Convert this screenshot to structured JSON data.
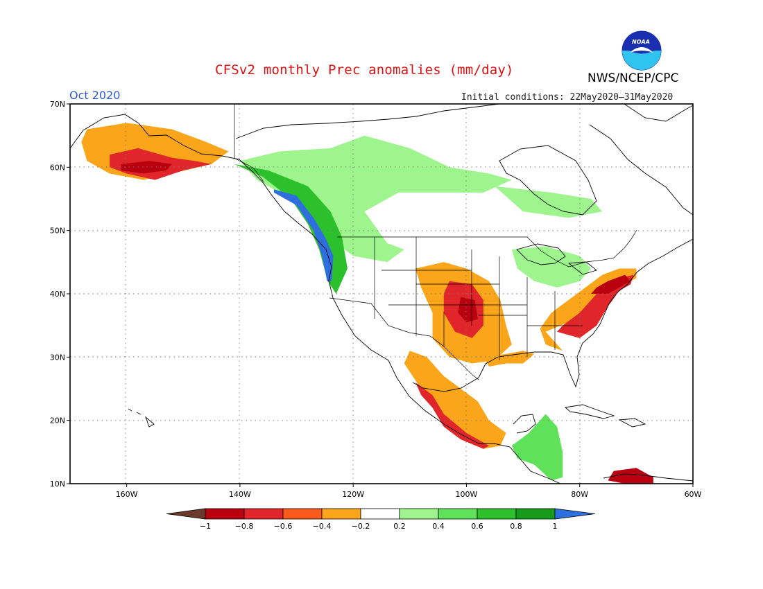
{
  "title": "CFSv2 monthly Prec anomalies (mm/day)",
  "agency": "NWS/NCEP/CPC",
  "logo_text": "NOAA",
  "period": "Oct 2020",
  "init_conditions": "Initial conditions: 22May2020–31May2020",
  "map": {
    "lon_range": [
      -170,
      -60
    ],
    "lat_range": [
      10,
      70
    ],
    "lat_ticks": [
      {
        "value": 70,
        "label": "70N"
      },
      {
        "value": 60,
        "label": "60N"
      },
      {
        "value": 50,
        "label": "50N"
      },
      {
        "value": 40,
        "label": "40N"
      },
      {
        "value": 30,
        "label": "30N"
      },
      {
        "value": 20,
        "label": "20N"
      },
      {
        "value": 10,
        "label": "10N"
      }
    ],
    "lon_ticks": [
      {
        "value": -160,
        "label": "160W"
      },
      {
        "value": -140,
        "label": "140W"
      },
      {
        "value": -120,
        "label": "120W"
      },
      {
        "value": -100,
        "label": "100W"
      },
      {
        "value": -80,
        "label": "80W"
      },
      {
        "value": -60,
        "label": "60W"
      }
    ],
    "grid": "dotted"
  },
  "colorbar": {
    "labels": [
      "−1",
      "−0.8",
      "−0.6",
      "−0.4",
      "−0.2",
      "0.2",
      "0.4",
      "0.6",
      "0.8",
      "1"
    ],
    "colors": [
      "#6b3a2a",
      "#b8000f",
      "#e0262a",
      "#fa5a1c",
      "#fba51a",
      "#ffffff",
      "#9ef58d",
      "#5fe15a",
      "#2cc12c",
      "#179b1a",
      "#2e6fe0"
    ]
  },
  "anomaly_regions": [
    {
      "name": "alaska",
      "level": -0.4,
      "color": "#fba51a",
      "lonlat": [
        [
          -167,
          66
        ],
        [
          -160,
          67
        ],
        [
          -152,
          66
        ],
        [
          -146,
          64
        ],
        [
          -142,
          62.5
        ],
        [
          -145,
          60.5
        ],
        [
          -152,
          59
        ],
        [
          -157,
          58
        ],
        [
          -163,
          59
        ],
        [
          -167,
          61
        ],
        [
          -168,
          64
        ]
      ]
    },
    {
      "name": "alaska-south",
      "level": -0.7,
      "color": "#e0262a",
      "lonlat": [
        [
          -163,
          62
        ],
        [
          -158,
          63
        ],
        [
          -152,
          61.5
        ],
        [
          -148,
          61
        ],
        [
          -145,
          60.5
        ],
        [
          -150,
          59.5
        ],
        [
          -155,
          58
        ],
        [
          -160,
          59
        ],
        [
          -163,
          60
        ]
      ]
    },
    {
      "name": "alaska-core",
      "level": -0.9,
      "color": "#b8000f",
      "lonlat": [
        [
          -161,
          60.5
        ],
        [
          -156,
          61
        ],
        [
          -152,
          60.5
        ],
        [
          -153,
          59.5
        ],
        [
          -157,
          59
        ],
        [
          -161,
          59.5
        ]
      ]
    },
    {
      "name": "yukon-bc",
      "level": 0.3,
      "color": "#9ef58d",
      "lonlat": [
        [
          -140,
          61
        ],
        [
          -133,
          62.5
        ],
        [
          -124,
          63
        ],
        [
          -118,
          65
        ],
        [
          -110,
          63
        ],
        [
          -103,
          60
        ],
        [
          -96,
          59
        ],
        [
          -92,
          58
        ],
        [
          -97,
          56
        ],
        [
          -112,
          56
        ],
        [
          -118,
          53
        ],
        [
          -114,
          48
        ],
        [
          -111,
          47
        ],
        [
          -114,
          45
        ],
        [
          -120,
          46
        ],
        [
          -123,
          48
        ],
        [
          -126,
          51
        ],
        [
          -131,
          55
        ],
        [
          -137,
          58
        ]
      ]
    },
    {
      "name": "bc-coast",
      "level": 0.7,
      "color": "#2cc12c",
      "lonlat": [
        [
          -141,
          60.5
        ],
        [
          -135,
          59.5
        ],
        [
          -128,
          57
        ],
        [
          -124,
          53
        ],
        [
          -122,
          49
        ],
        [
          -121,
          44
        ],
        [
          -123,
          40
        ],
        [
          -124.5,
          42
        ],
        [
          -126,
          47
        ],
        [
          -128,
          51
        ],
        [
          -131,
          55
        ],
        [
          -136,
          58.5
        ]
      ]
    },
    {
      "name": "pnw-coast",
      "level": 1.0,
      "color": "#2e6fe0",
      "lonlat": [
        [
          -134,
          56.5
        ],
        [
          -130,
          55.5
        ],
        [
          -127,
          52
        ],
        [
          -125,
          49
        ],
        [
          -123.5,
          46
        ],
        [
          -123.8,
          42
        ],
        [
          -124.6,
          42
        ],
        [
          -125.5,
          46
        ],
        [
          -127,
          50
        ],
        [
          -130,
          54
        ],
        [
          -134,
          56
        ]
      ]
    },
    {
      "name": "great-lakes",
      "level": 0.3,
      "color": "#9ef58d",
      "lonlat": [
        [
          -92,
          47
        ],
        [
          -86,
          47.5
        ],
        [
          -80,
          46
        ],
        [
          -78,
          44
        ],
        [
          -80,
          42
        ],
        [
          -84,
          41
        ],
        [
          -88,
          42
        ],
        [
          -91,
          44
        ]
      ]
    },
    {
      "name": "quebec",
      "level": 0.3,
      "color": "#9ef58d",
      "lonlat": [
        [
          -95,
          57
        ],
        [
          -85,
          56
        ],
        [
          -78,
          55
        ],
        [
          -76,
          53
        ],
        [
          -82,
          52
        ],
        [
          -90,
          53
        ]
      ]
    },
    {
      "name": "plains",
      "level": -0.4,
      "color": "#fba51a",
      "lonlat": [
        [
          -109,
          44
        ],
        [
          -104,
          45
        ],
        [
          -100,
          44
        ],
        [
          -96,
          42
        ],
        [
          -94,
          39
        ],
        [
          -93,
          35
        ],
        [
          -92,
          32
        ],
        [
          -95,
          29.5
        ],
        [
          -99,
          29
        ],
        [
          -103,
          30
        ],
        [
          -106,
          33
        ],
        [
          -106,
          37
        ],
        [
          -108,
          41
        ]
      ]
    },
    {
      "name": "plains-core",
      "level": -0.7,
      "color": "#e0262a",
      "lonlat": [
        [
          -103,
          42
        ],
        [
          -99,
          41.5
        ],
        [
          -97,
          39
        ],
        [
          -97,
          35
        ],
        [
          -99,
          33
        ],
        [
          -102,
          34
        ],
        [
          -104,
          37
        ],
        [
          -104,
          40
        ]
      ]
    },
    {
      "name": "plains-center",
      "level": -0.9,
      "color": "#b8000f",
      "lonlat": [
        [
          -101,
          39.5
        ],
        [
          -98.5,
          39
        ],
        [
          -98,
          36
        ],
        [
          -100,
          35.5
        ],
        [
          -101.5,
          37
        ]
      ]
    },
    {
      "name": "gulf-coast",
      "level": -0.4,
      "color": "#fba51a",
      "lonlat": [
        [
          -97,
          30
        ],
        [
          -93,
          30.5
        ],
        [
          -90,
          31
        ],
        [
          -88,
          30.5
        ],
        [
          -90,
          29
        ],
        [
          -93,
          29
        ],
        [
          -96,
          28.5
        ]
      ]
    },
    {
      "name": "southeast",
      "level": -0.4,
      "color": "#fba51a",
      "lonlat": [
        [
          -86,
          34
        ],
        [
          -82,
          35.5
        ],
        [
          -78,
          37
        ],
        [
          -76,
          39.5
        ],
        [
          -73,
          41
        ],
        [
          -70,
          42.5
        ],
        [
          -70,
          44
        ],
        [
          -73,
          44
        ],
        [
          -76,
          43
        ],
        [
          -79,
          41
        ],
        [
          -82,
          39
        ],
        [
          -85,
          37
        ],
        [
          -87,
          34.5
        ],
        [
          -86,
          32
        ],
        [
          -83,
          31
        ]
      ]
    },
    {
      "name": "east-coast",
      "level": -0.7,
      "color": "#e0262a",
      "lonlat": [
        [
          -84,
          34
        ],
        [
          -80,
          33
        ],
        [
          -77,
          35
        ],
        [
          -75,
          38
        ],
        [
          -73,
          40.5
        ],
        [
          -71,
          41.5
        ],
        [
          -70.5,
          43
        ],
        [
          -73,
          42.5
        ],
        [
          -76,
          41
        ],
        [
          -78,
          39
        ],
        [
          -80,
          37
        ],
        [
          -83,
          35
        ]
      ]
    },
    {
      "name": "northeast-core",
      "level": -0.9,
      "color": "#b8000f",
      "lonlat": [
        [
          -78,
          40
        ],
        [
          -75,
          40
        ],
        [
          -73,
          41
        ],
        [
          -71,
          42
        ],
        [
          -72,
          43
        ],
        [
          -75,
          42
        ],
        [
          -77,
          41
        ]
      ]
    },
    {
      "name": "mexico",
      "level": -0.4,
      "color": "#fba51a",
      "lonlat": [
        [
          -110,
          31
        ],
        [
          -107,
          30
        ],
        [
          -104,
          27
        ],
        [
          -101,
          25
        ],
        [
          -98,
          23
        ],
        [
          -96,
          20
        ],
        [
          -93,
          18
        ],
        [
          -94,
          16
        ],
        [
          -97,
          15.5
        ],
        [
          -101,
          17
        ],
        [
          -104,
          19
        ],
        [
          -106,
          22
        ],
        [
          -108,
          25
        ],
        [
          -111,
          29
        ]
      ]
    },
    {
      "name": "mexico-west",
      "level": -0.7,
      "color": "#e0262a",
      "lonlat": [
        [
          -109,
          26
        ],
        [
          -106,
          24
        ],
        [
          -104,
          21
        ],
        [
          -100,
          18
        ],
        [
          -96,
          16
        ],
        [
          -97,
          15.5
        ],
        [
          -101,
          17
        ],
        [
          -104,
          19
        ],
        [
          -106,
          22
        ],
        [
          -108,
          24
        ]
      ]
    },
    {
      "name": "central-america",
      "level": 0.6,
      "color": "#5fe15a",
      "lonlat": [
        [
          -92,
          16
        ],
        [
          -89,
          18
        ],
        [
          -86,
          21
        ],
        [
          -84,
          19
        ],
        [
          -83,
          15
        ],
        [
          -83,
          11
        ],
        [
          -85,
          10.5
        ],
        [
          -88,
          13
        ],
        [
          -91,
          14
        ]
      ]
    },
    {
      "name": "caribbean-south",
      "level": -0.9,
      "color": "#b8000f",
      "lonlat": [
        [
          -74,
          12
        ],
        [
          -70,
          12.5
        ],
        [
          -67,
          11
        ],
        [
          -67,
          10
        ],
        [
          -72,
          10
        ],
        [
          -75,
          10.5
        ]
      ]
    }
  ]
}
